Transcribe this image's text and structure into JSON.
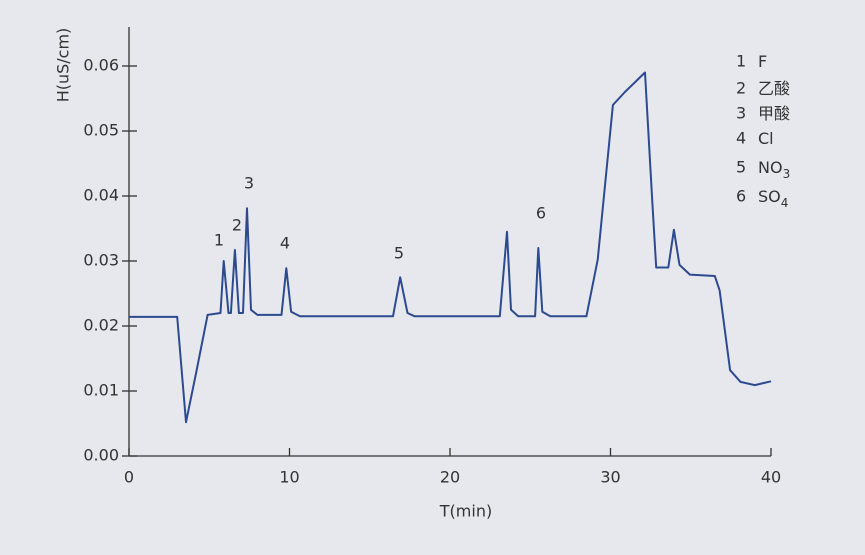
{
  "chart_data": {
    "type": "line",
    "ylabel": "H(uS/cm)",
    "xlabel": "T(min)",
    "color": "#2d4a8f",
    "x": [
      0,
      3.0,
      3.55,
      4.2,
      4.9,
      5.7,
      5.9,
      6.2,
      6.35,
      6.6,
      6.85,
      7.1,
      7.35,
      7.6,
      8.0,
      9.5,
      9.8,
      10.1,
      10.65,
      16.45,
      16.9,
      17.35,
      17.8,
      23.1,
      23.55,
      23.8,
      24.25,
      25.3,
      25.5,
      25.75,
      26.25,
      28.5,
      29.2,
      30.15,
      30.9,
      32.15,
      32.6,
      32.85,
      33.6,
      33.95,
      34.3,
      34.95,
      36.5,
      36.8,
      37.45,
      38.1,
      39.0,
      40.0
    ],
    "values": [
      0.0214,
      0.0214,
      0.0052,
      0.013,
      0.0217,
      0.022,
      0.03,
      0.022,
      0.022,
      0.0317,
      0.022,
      0.022,
      0.0381,
      0.0225,
      0.0217,
      0.0217,
      0.0289,
      0.0222,
      0.0215,
      0.0215,
      0.0275,
      0.022,
      0.0215,
      0.0215,
      0.0345,
      0.0225,
      0.0215,
      0.0215,
      0.032,
      0.0222,
      0.0215,
      0.0215,
      0.0302,
      0.054,
      0.056,
      0.059,
      0.0394,
      0.029,
      0.029,
      0.0348,
      0.0294,
      0.0279,
      0.0277,
      0.0255,
      0.0132,
      0.0114,
      0.0109,
      0.0115
    ],
    "xlim": [
      0,
      40
    ],
    "xticks": [
      0,
      10,
      20,
      30,
      40
    ],
    "ylim": [
      0,
      0.066
    ],
    "yticks": [
      {
        "value": 0,
        "label": "0.00"
      },
      0.01,
      0.02,
      0.03,
      0.04,
      0.05,
      0.06
    ],
    "annotations": [
      "1",
      "2",
      "3",
      "4",
      "5",
      "6"
    ],
    "legend": [
      {
        "number": "1",
        "label": "F"
      },
      {
        "number": "2",
        "label": "乙酸"
      },
      {
        "number": "3",
        "label": "甲酸"
      },
      {
        "number": "4",
        "label": "Cl"
      },
      {
        "number": "5",
        "label": "NO",
        "sub": "3"
      },
      {
        "number": "6",
        "label": "SO",
        "sub": "4"
      }
    ]
  }
}
